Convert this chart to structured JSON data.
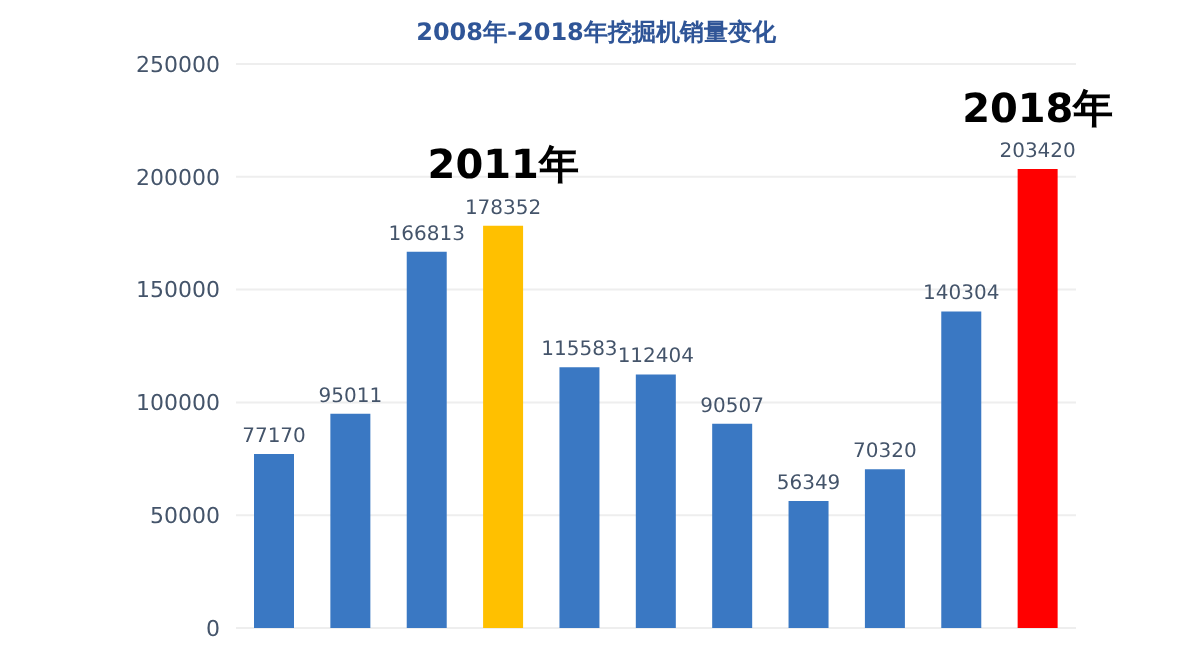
{
  "chart_data": {
    "type": "bar",
    "title": "2008年-2018年挖掘机销量变化",
    "categories": [
      null,
      null,
      null,
      null,
      null,
      null,
      null,
      null,
      null,
      null,
      null
    ],
    "values": [
      77170,
      95011,
      166813,
      178352,
      115583,
      112404,
      90507,
      56349,
      70320,
      140304,
      203420
    ],
    "colors": [
      "#3a78c3",
      "#3a78c3",
      "#3a78c3",
      "#ffc000",
      "#3a78c3",
      "#3a78c3",
      "#3a78c3",
      "#3a78c3",
      "#3a78c3",
      "#3a78c3",
      "#ff0000"
    ],
    "ylim": [
      0,
      250000
    ],
    "yticks": [
      0,
      50000,
      100000,
      150000,
      200000,
      250000
    ],
    "grid": "y",
    "data_labels": true,
    "annotations": [
      {
        "text": "2011年",
        "y": 178352
      },
      {
        "text": "2018年",
        "y": 203420
      }
    ]
  }
}
